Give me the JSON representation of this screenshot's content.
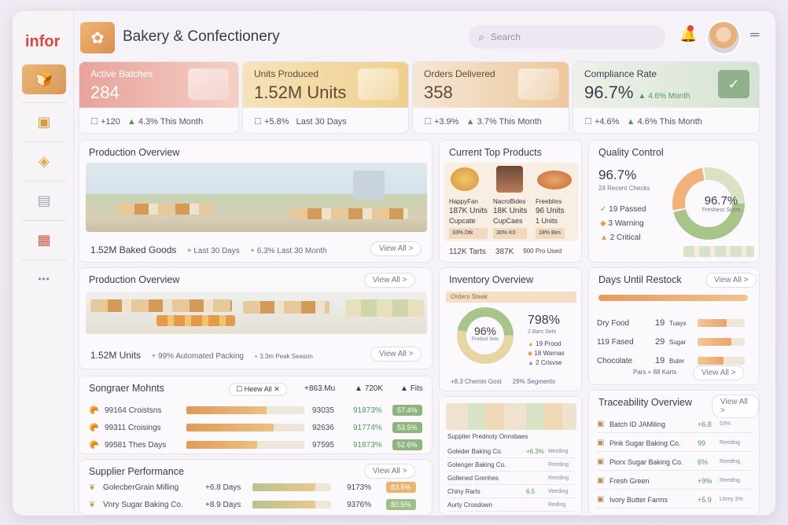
{
  "brand": "infor",
  "app_title": "Bakery & Confectionery",
  "search": {
    "placeholder": "Search"
  },
  "sidebar": {
    "items": [
      {
        "icon": "bread-icon"
      },
      {
        "icon": "box-icon"
      },
      {
        "icon": "bag-icon"
      },
      {
        "icon": "document-icon"
      },
      {
        "icon": "briefcase-icon"
      },
      {
        "icon": "more-icon",
        "glyph": "•••"
      }
    ]
  },
  "kpis": [
    {
      "title": "Active Batches",
      "value": "284",
      "delta": "+120",
      "trend": "4.3% This Month",
      "color": "#e69a93"
    },
    {
      "title": "Units Produced",
      "value": "1.52M Units",
      "delta": "+5.8%",
      "trend": "Last 30 Days",
      "color": "#ecc278"
    },
    {
      "title": "Orders Delivered",
      "value": "358",
      "delta": "+3.9%",
      "trend": "3.7% This Month",
      "color": "#e8b98a"
    },
    {
      "title": "Compliance Rate",
      "value": "96.7%",
      "delta": "+4.6%",
      "trend": "4.6% This Month",
      "badge": "4.6% Month",
      "color": "#a9c6a5"
    }
  ],
  "production_overview_1": {
    "title": "Production Overview",
    "metric": "1.52M Baked Goods",
    "note1": "Last 30 Days",
    "note2": "6.3% Last 30 Month",
    "view_all": "View All >"
  },
  "top_products": {
    "title": "Current Top Products",
    "items": [
      {
        "name": "HappyFan",
        "units": "187K Units",
        "type": "Cupcate",
        "tag": "33% Dtk"
      },
      {
        "name": "NacroBides",
        "units": "18K Units",
        "type": "CupCaes",
        "tag": "30% K0"
      },
      {
        "name": "Freebites",
        "units": "96 Units",
        "type": "1 Units",
        "tag": "18% Bes"
      }
    ],
    "footer": [
      "112K Tarts",
      "387K",
      "900 Pro Used"
    ]
  },
  "quality": {
    "title": "Quality Control",
    "percent": "96.7%",
    "sub": "24 Recent Checks",
    "center_value": "96.7%",
    "center_label": "Freshess Scors",
    "passed": "19 Passed",
    "warning": "3 Warning",
    "critical": "2 Critical"
  },
  "production_overview_2": {
    "title": "Production Overview",
    "metric": "1.52M Units",
    "note1": "99% Automated Packing",
    "note2": "3.3m Peak Season",
    "view_all": "View All >"
  },
  "inventory": {
    "title": "Inventory Overview",
    "banner": "Orders Steak",
    "donut_value": "96%",
    "donut_label": "Product Sets",
    "big": "798%",
    "big_sub": "2 Bars Sets",
    "legend": [
      "19 Prood",
      "18 Warnas",
      "2 Crisvse"
    ],
    "footer": [
      "+8.3 Chemin Gost",
      "29% Segments"
    ]
  },
  "restock": {
    "title": "Days Until Restock",
    "view_all": "View All >",
    "rows": [
      {
        "name": "Dry Food",
        "days": "19",
        "unit": "Tuays",
        "fill": 0.62
      },
      {
        "name": "119 Fased",
        "days": "29",
        "unit": "Sugar",
        "fill": 0.72
      },
      {
        "name": "Chocolate",
        "days": "19",
        "unit": "Buter",
        "fill": 0.55
      }
    ],
    "note": "Pars + 88 Karts",
    "footer_link": "View All >"
  },
  "supplier_shipments": {
    "title": "Songraer Mohnts",
    "filter": "Heew All",
    "col2": "+863.Mu",
    "col3": "720K",
    "col4": "Fits",
    "rows": [
      {
        "name": "99164 Croistsns",
        "v1": "93035",
        "v2": "91873%",
        "tag": "57.4%",
        "fill": 0.68
      },
      {
        "name": "99311 Croisings",
        "v1": "92636",
        "v2": "91774%",
        "tag": "53.5%",
        "fill": 0.74
      },
      {
        "name": "99581 Thes Days",
        "v1": "97595",
        "v2": "91873%",
        "tag": "52.6%",
        "fill": 0.6
      }
    ]
  },
  "supplier_performance": {
    "title": "Supplier Performance",
    "view_all": "View All >",
    "rows": [
      {
        "name": "GolecberGrain Milling",
        "days": "+6.8 Days",
        "v": "9173%",
        "tag": "83.5%"
      },
      {
        "name": "Vnry Sugar Baking Co.",
        "days": "+8.9 Days",
        "v": "9376%",
        "tag": "80.5%"
      }
    ]
  },
  "supplier_readiness": {
    "title": "Supplier Prednoty Onnsbaes",
    "rows": [
      {
        "name": "Goleder Baking Co.",
        "v": "+6.3%",
        "s": "Merding"
      },
      {
        "name": "Golenger Baking Co.",
        "v": "",
        "s": "Reeding"
      },
      {
        "name": "Gollened Grenhes",
        "v": "",
        "s": "Reeding"
      },
      {
        "name": "Chiny Rarts",
        "v": "6.5",
        "s": "Veeding"
      },
      {
        "name": "Aurty Crosdown",
        "v": "",
        "s": "Reding"
      }
    ]
  },
  "traceability": {
    "title": "Traceability Overview",
    "view_all": "View All >",
    "rows": [
      {
        "name": "Batch ID JAMiling",
        "v": "+6.8",
        "s": "53%"
      },
      {
        "name": "Pink Sugar Baking Co.",
        "v": "99",
        "s": "Reeding"
      },
      {
        "name": "Piorx Sugar Baking Co.",
        "v": "6%",
        "s": "Reeding"
      },
      {
        "name": "Fresh Green",
        "v": "+9%",
        "s": "Reeding"
      },
      {
        "name": "Ivory Butter Farms",
        "v": "+5.9",
        "s": "Lttrey 3%"
      }
    ]
  }
}
